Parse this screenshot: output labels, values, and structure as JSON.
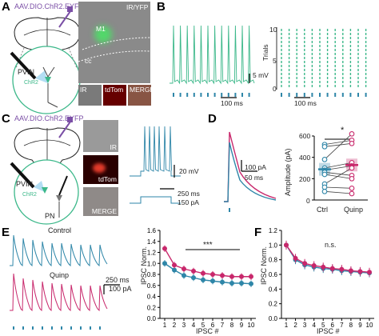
{
  "panels": {
    "A": {
      "letter": "A",
      "virus": "AAV.DIO.ChR2.EYFP",
      "pvin": "PVIN",
      "chr2": "ChR2",
      "m1": "M1",
      "cc": "cc",
      "ir_yfp": "IR/YFP",
      "ir": "IR",
      "tdtom": "tdTom",
      "merge": "MERGE"
    },
    "B": {
      "letter": "B",
      "scale_mv": "5 mV",
      "scale_ms": "100 ms",
      "scale_ms2": "100 ms",
      "trials_label": "Trials",
      "trial_ticks": [
        "0",
        "5",
        "10"
      ]
    },
    "C": {
      "letter": "C",
      "virus": "AAV.DIO.ChR2.EYFP",
      "pvin": "PVIN",
      "chr2": "ChR2",
      "pn": "PN",
      "ir": "IR",
      "tdtom": "tdTom",
      "merge": "MERGE",
      "scale_mv": "20 mV",
      "scale_ms": "250 ms",
      "scale_pa": "150 pA"
    },
    "D": {
      "letter": "D",
      "scale_pa": "100 pA",
      "scale_ms": "50 ms",
      "ylabel": "Amplitude (pA)",
      "yticks": [
        "0",
        "200",
        "400",
        "600"
      ],
      "cats": [
        "Ctrl",
        "Quinp"
      ],
      "sig": "*"
    },
    "E": {
      "letter": "E",
      "control": "Control",
      "quinp": "Quinp",
      "scale_ms": "250 ms",
      "scale_pa": "100 pA",
      "ylabel": "IPSC Norm.",
      "xlabel": "IPSC #",
      "sig": "***"
    },
    "F": {
      "letter": "F",
      "ylabel": "IPSC Norm.",
      "xlabel": "IPSC #",
      "sig": "n.s."
    }
  },
  "colors": {
    "control": "#2e86a8",
    "quinp": "#c8276b",
    "chr2": "#3cb88a",
    "purple": "#7b4fa6"
  },
  "chart_data": [
    {
      "type": "scatter",
      "panel": "D",
      "ylabel": "Amplitude (pA)",
      "ylim": [
        0,
        600
      ],
      "categories": [
        "Ctrl",
        "Quinp"
      ],
      "pairs": [
        [
          520,
          560
        ],
        [
          500,
          530
        ],
        [
          380,
          620
        ],
        [
          300,
          350
        ],
        [
          280,
          320
        ],
        [
          260,
          230
        ],
        [
          240,
          200
        ],
        [
          150,
          300
        ],
        [
          120,
          110
        ],
        [
          80,
          60
        ]
      ],
      "means": [
        288,
        328
      ]
    },
    {
      "type": "line",
      "panel": "E",
      "ylabel": "IPSC Norm.",
      "xlabel": "IPSC #",
      "x": [
        1,
        2,
        3,
        4,
        5,
        6,
        7,
        8,
        9,
        10
      ],
      "ylim": [
        0,
        1.6
      ],
      "series": [
        {
          "values": [
            1.0,
            0.88,
            0.78,
            0.74,
            0.7,
            0.68,
            0.66,
            0.64,
            0.64,
            0.63
          ]
        },
        {
          "values": [
            1.27,
            0.97,
            0.9,
            0.86,
            0.82,
            0.8,
            0.78,
            0.76,
            0.76,
            0.76
          ]
        }
      ]
    },
    {
      "type": "line",
      "panel": "F",
      "ylabel": "IPSC Norm.",
      "xlabel": "IPSC #",
      "x": [
        1,
        2,
        3,
        4,
        5,
        6,
        7,
        8,
        9,
        10
      ],
      "ylim": [
        0,
        1.2
      ],
      "series": [
        {
          "values": [
            1.0,
            0.8,
            0.73,
            0.7,
            0.68,
            0.67,
            0.65,
            0.64,
            0.63,
            0.62
          ]
        },
        {
          "values": [
            1.0,
            0.82,
            0.75,
            0.72,
            0.7,
            0.68,
            0.67,
            0.65,
            0.64,
            0.63
          ]
        }
      ]
    }
  ]
}
